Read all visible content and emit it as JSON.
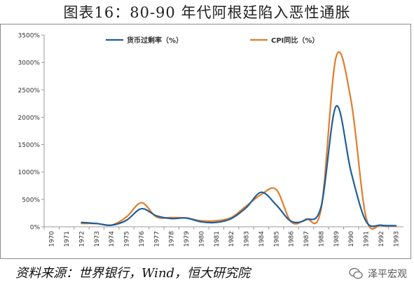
{
  "title": "图表16：80-90 年代阿根廷陷入恶性通胀",
  "source": "资料来源：世界银行，Wind，恒大研究院",
  "watermark": "泽平宏观",
  "chart_data": {
    "type": "line",
    "x": [
      "1970",
      "1971",
      "1972",
      "1973",
      "1974",
      "1975",
      "1976",
      "1977",
      "1978",
      "1979",
      "1980",
      "1981",
      "1982",
      "1983",
      "1984",
      "1985",
      "1986",
      "1987",
      "1988",
      "1989",
      "1990",
      "1991",
      "1992",
      "1993"
    ],
    "ylim": [
      0,
      3500
    ],
    "yticks": [
      "0%",
      "500%",
      "1000%",
      "1500%",
      "2000%",
      "2500%",
      "3000%",
      "3500%"
    ],
    "legend_position": "top",
    "series": [
      {
        "name": "货币过剩率（%）",
        "color": "#1f5f9a",
        "values": [
          null,
          null,
          80,
          60,
          30,
          120,
          330,
          200,
          150,
          160,
          90,
          80,
          150,
          350,
          630,
          400,
          100,
          130,
          370,
          2200,
          1000,
          100,
          30,
          20
        ]
      },
      {
        "name": "CPI同比（%）",
        "color": "#e07d2a",
        "values": [
          null,
          null,
          60,
          60,
          30,
          180,
          440,
          180,
          170,
          160,
          110,
          110,
          170,
          380,
          590,
          680,
          90,
          140,
          330,
          3100,
          2300,
          170,
          25,
          15
        ]
      }
    ]
  }
}
